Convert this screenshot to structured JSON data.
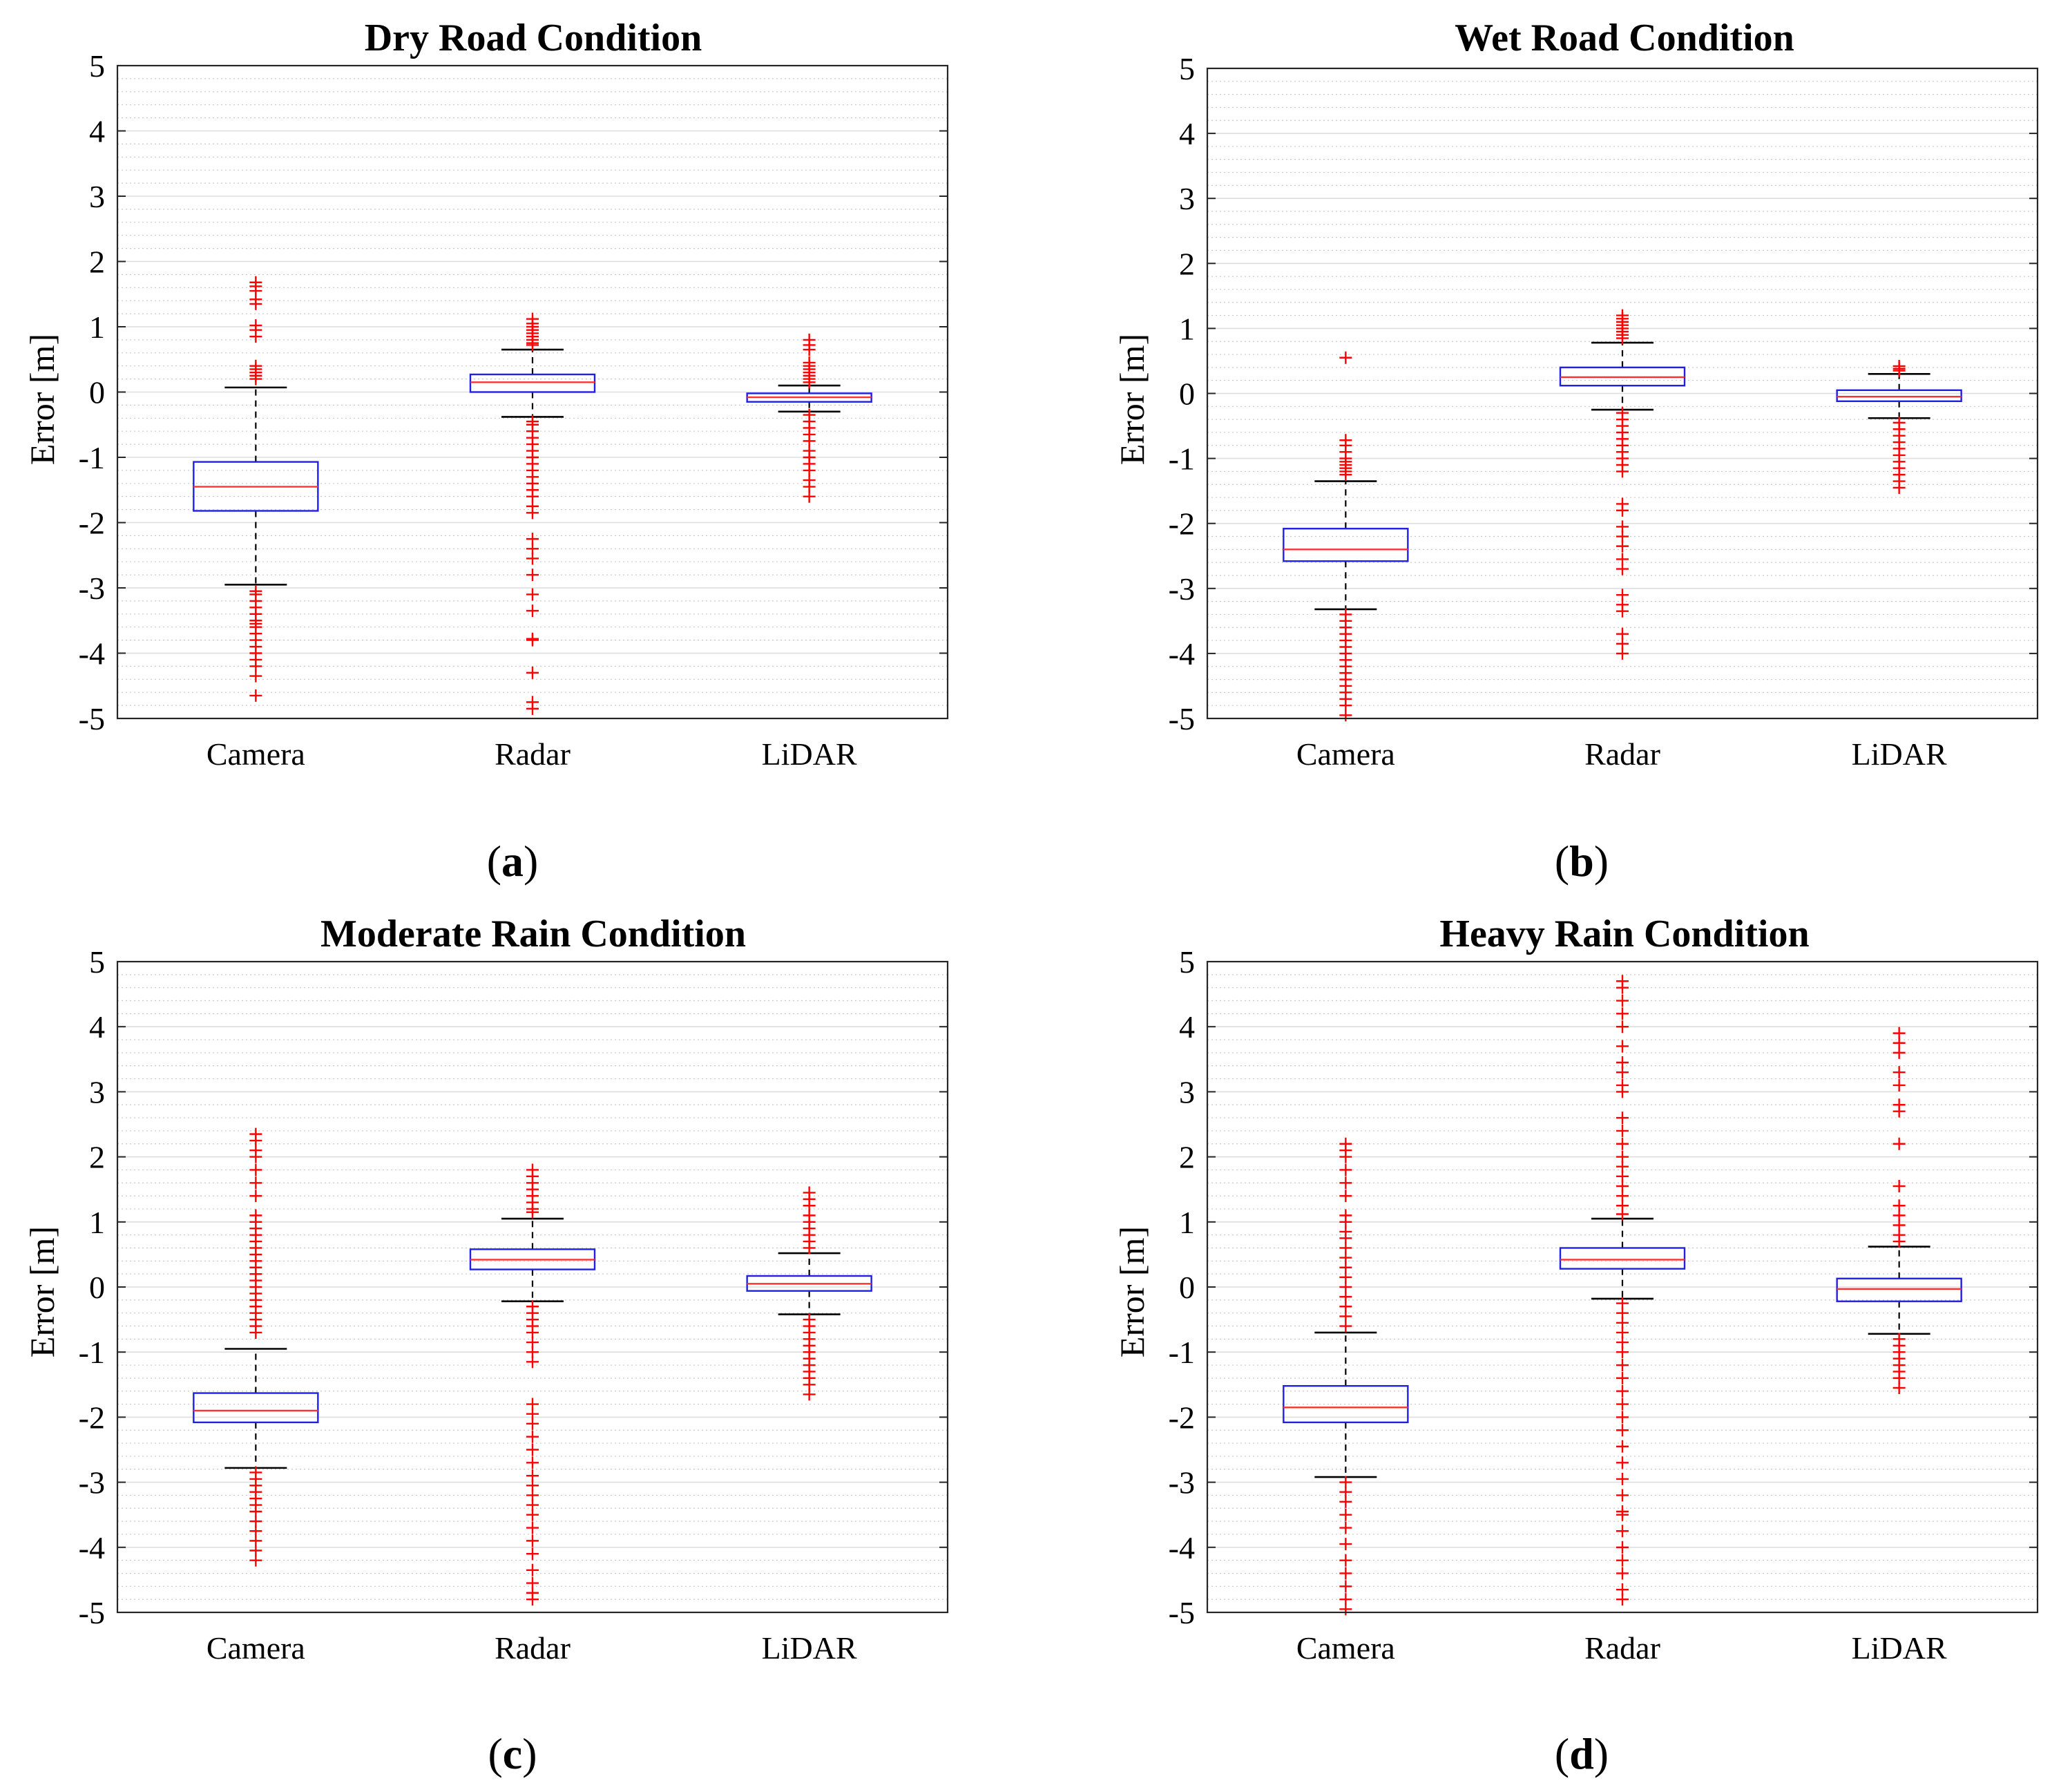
{
  "chart_data": [
    {
      "type": "box",
      "panel_label": "a",
      "title": "Dry Road Condition",
      "ylabel": "Error [m]",
      "ylim": [
        -5,
        5
      ],
      "yticks": [
        -5,
        -4,
        -3,
        -2,
        -1,
        0,
        1,
        2,
        3,
        4,
        5
      ],
      "categories": [
        "Camera",
        "Radar",
        "LiDAR"
      ],
      "grid": true,
      "colors": {
        "box": "#2020e0",
        "median": "#ff3030",
        "outlier": "#ff0000",
        "whisker": "#000000"
      },
      "boxes": [
        {
          "q1": -1.82,
          "median": -1.45,
          "q3": -1.07,
          "whisker_low": -2.95,
          "whisker_high": 0.07,
          "outliers": [
            1.68,
            1.62,
            1.55,
            1.42,
            1.35,
            1.02,
            0.95,
            0.85,
            0.4,
            0.35,
            0.3,
            0.25,
            0.2,
            -3.05,
            -3.1,
            -3.2,
            -3.3,
            -3.4,
            -3.5,
            -3.55,
            -3.6,
            -3.7,
            -3.8,
            -3.9,
            -4.0,
            -4.1,
            -4.2,
            -4.35,
            -4.65
          ]
        },
        {
          "q1": 0.0,
          "median": 0.15,
          "q3": 0.27,
          "whisker_low": -0.38,
          "whisker_high": 0.65,
          "outliers": [
            1.12,
            1.05,
            1.0,
            0.95,
            0.9,
            0.85,
            0.8,
            0.75,
            0.72,
            -0.45,
            -0.5,
            -0.6,
            -0.7,
            -0.8,
            -0.9,
            -1.0,
            -1.1,
            -1.2,
            -1.3,
            -1.4,
            -1.5,
            -1.6,
            -1.75,
            -1.85,
            -2.25,
            -2.4,
            -2.55,
            -2.8,
            -3.1,
            -3.35,
            -3.78,
            -3.8,
            -4.3,
            -4.75,
            -4.85
          ]
        },
        {
          "q1": -0.15,
          "median": -0.08,
          "q3": -0.02,
          "whisker_low": -0.3,
          "whisker_high": 0.1,
          "outliers": [
            0.8,
            0.72,
            0.65,
            0.45,
            0.4,
            0.35,
            0.3,
            0.25,
            0.2,
            0.15,
            -0.35,
            -0.45,
            -0.55,
            -0.65,
            -0.75,
            -0.9,
            -1.0,
            -1.1,
            -1.2,
            -1.35,
            -1.45,
            -1.6
          ]
        }
      ]
    },
    {
      "type": "box",
      "panel_label": "b",
      "title": "Wet Road Condition",
      "ylabel": "Error [m]",
      "ylim": [
        -5,
        5
      ],
      "yticks": [
        -5,
        -4,
        -3,
        -2,
        -1,
        0,
        1,
        2,
        3,
        4,
        5
      ],
      "categories": [
        "Camera",
        "Radar",
        "LiDAR"
      ],
      "grid": true,
      "colors": {
        "box": "#2020e0",
        "median": "#ff3030",
        "outlier": "#ff0000",
        "whisker": "#000000"
      },
      "boxes": [
        {
          "q1": -2.58,
          "median": -2.4,
          "q3": -2.08,
          "whisker_low": -3.32,
          "whisker_high": -1.35,
          "outliers": [
            0.55,
            -0.72,
            -0.8,
            -0.9,
            -1.0,
            -1.05,
            -1.1,
            -1.15,
            -1.2,
            -1.25,
            -3.4,
            -3.5,
            -3.6,
            -3.7,
            -3.8,
            -3.9,
            -4.0,
            -4.1,
            -4.2,
            -4.3,
            -4.4,
            -4.5,
            -4.6,
            -4.7,
            -4.8,
            -4.95
          ]
        },
        {
          "q1": 0.12,
          "median": 0.25,
          "q3": 0.4,
          "whisker_low": -0.25,
          "whisker_high": 0.78,
          "outliers": [
            1.2,
            1.15,
            1.1,
            1.05,
            1.0,
            0.95,
            0.9,
            0.85,
            -0.3,
            -0.4,
            -0.5,
            -0.6,
            -0.7,
            -0.8,
            -0.9,
            -1.0,
            -1.1,
            -1.2,
            -1.7,
            -1.8,
            -2.05,
            -2.2,
            -2.35,
            -2.55,
            -2.7,
            -3.1,
            -3.25,
            -3.35,
            -3.7,
            -3.85,
            -4.0
          ]
        },
        {
          "q1": -0.12,
          "median": -0.05,
          "q3": 0.05,
          "whisker_low": -0.38,
          "whisker_high": 0.3,
          "outliers": [
            0.42,
            0.38,
            0.35,
            -0.45,
            -0.55,
            -0.65,
            -0.75,
            -0.85,
            -0.95,
            -1.05,
            -1.15,
            -1.25,
            -1.35,
            -1.45
          ]
        }
      ]
    },
    {
      "type": "box",
      "panel_label": "c",
      "title": "Moderate Rain Condition",
      "ylabel": "Error [m]",
      "ylim": [
        -5,
        5
      ],
      "yticks": [
        -5,
        -4,
        -3,
        -2,
        -1,
        0,
        1,
        2,
        3,
        4,
        5
      ],
      "categories": [
        "Camera",
        "Radar",
        "LiDAR"
      ],
      "grid": true,
      "colors": {
        "box": "#2020e0",
        "median": "#ff3030",
        "outlier": "#ff0000",
        "whisker": "#000000"
      },
      "boxes": [
        {
          "q1": -2.08,
          "median": -1.9,
          "q3": -1.63,
          "whisker_low": -2.78,
          "whisker_high": -0.95,
          "outliers": [
            2.35,
            2.25,
            2.1,
            2.0,
            1.8,
            1.6,
            1.4,
            1.1,
            1.0,
            0.9,
            0.8,
            0.7,
            0.6,
            0.5,
            0.4,
            0.3,
            0.2,
            0.1,
            0.0,
            -0.1,
            -0.2,
            -0.3,
            -0.4,
            -0.5,
            -0.6,
            -0.7,
            -2.85,
            -2.95,
            -3.05,
            -3.15,
            -3.25,
            -3.35,
            -3.45,
            -3.6,
            -3.75,
            -3.9,
            -4.05,
            -4.2
          ]
        },
        {
          "q1": 0.27,
          "median": 0.42,
          "q3": 0.58,
          "whisker_low": -0.22,
          "whisker_high": 1.05,
          "outliers": [
            1.8,
            1.7,
            1.6,
            1.5,
            1.4,
            1.3,
            1.2,
            1.15,
            -0.3,
            -0.4,
            -0.5,
            -0.6,
            -0.7,
            -0.85,
            -1.0,
            -1.15,
            -1.8,
            -1.95,
            -2.1,
            -2.3,
            -2.5,
            -2.7,
            -2.9,
            -3.05,
            -3.2,
            -3.35,
            -3.5,
            -3.7,
            -3.9,
            -4.1,
            -4.35,
            -4.55,
            -4.7,
            -4.8
          ]
        },
        {
          "q1": -0.06,
          "median": 0.05,
          "q3": 0.17,
          "whisker_low": -0.42,
          "whisker_high": 0.52,
          "outliers": [
            1.45,
            1.35,
            1.25,
            1.1,
            1.0,
            0.9,
            0.8,
            0.7,
            0.6,
            -0.5,
            -0.6,
            -0.7,
            -0.8,
            -0.9,
            -1.0,
            -1.1,
            -1.2,
            -1.3,
            -1.4,
            -1.5,
            -1.65
          ]
        }
      ]
    },
    {
      "type": "box",
      "panel_label": "d",
      "title": "Heavy Rain Condition",
      "ylabel": "Error [m]",
      "ylim": [
        -5,
        5
      ],
      "yticks": [
        -5,
        -4,
        -3,
        -2,
        -1,
        0,
        1,
        2,
        3,
        4,
        5
      ],
      "categories": [
        "Camera",
        "Radar",
        "LiDAR"
      ],
      "grid": true,
      "colors": {
        "box": "#2020e0",
        "median": "#ff3030",
        "outlier": "#ff0000",
        "whisker": "#000000"
      },
      "boxes": [
        {
          "q1": -2.08,
          "median": -1.85,
          "q3": -1.52,
          "whisker_low": -2.92,
          "whisker_high": -0.7,
          "outliers": [
            2.2,
            2.1,
            2.0,
            1.8,
            1.6,
            1.4,
            1.1,
            1.0,
            0.85,
            0.75,
            0.6,
            0.45,
            0.3,
            0.15,
            0.0,
            -0.15,
            -0.3,
            -0.45,
            -0.6,
            -3.0,
            -3.15,
            -3.3,
            -3.5,
            -3.7,
            -3.95,
            -4.2,
            -4.4,
            -4.6,
            -4.8,
            -4.95
          ]
        },
        {
          "q1": 0.28,
          "median": 0.42,
          "q3": 0.6,
          "whisker_low": -0.18,
          "whisker_high": 1.05,
          "outliers": [
            4.7,
            4.6,
            4.4,
            4.2,
            4.0,
            3.7,
            3.45,
            3.3,
            3.1,
            3.0,
            2.6,
            2.4,
            2.2,
            2.0,
            1.85,
            1.7,
            1.55,
            1.4,
            1.25,
            1.12,
            -0.25,
            -0.4,
            -0.55,
            -0.7,
            -0.85,
            -1.0,
            -1.2,
            -1.4,
            -1.6,
            -1.8,
            -2.0,
            -2.2,
            -2.45,
            -2.7,
            -2.95,
            -3.2,
            -3.45,
            -3.5,
            -3.75,
            -4.0,
            -4.2,
            -4.4,
            -4.65,
            -4.8
          ]
        },
        {
          "q1": -0.22,
          "median": -0.03,
          "q3": 0.13,
          "whisker_low": -0.72,
          "whisker_high": 0.62,
          "outliers": [
            3.9,
            3.75,
            3.6,
            3.3,
            3.1,
            2.8,
            2.7,
            2.2,
            1.55,
            1.25,
            1.1,
            0.95,
            0.8,
            0.7,
            -0.8,
            -0.9,
            -1.0,
            -1.1,
            -1.2,
            -1.3,
            -1.4,
            -1.55
          ]
        }
      ]
    }
  ]
}
